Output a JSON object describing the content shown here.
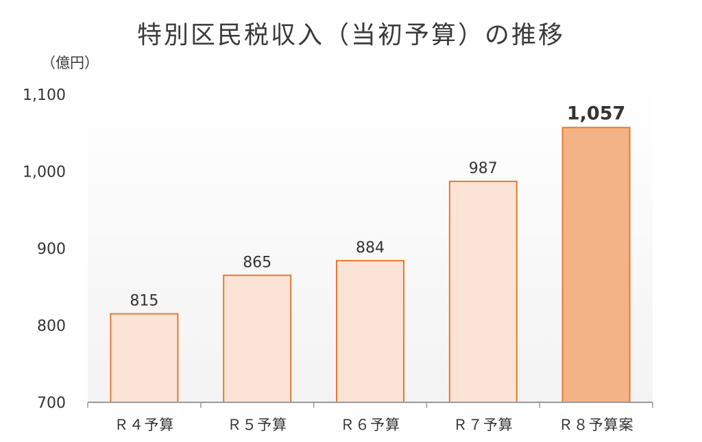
{
  "chart_data": {
    "type": "bar",
    "title": "特別区民税収入（当初予算）の推移",
    "unit_label": "（億円）",
    "categories": [
      "Ｒ４予算",
      "Ｒ５予算",
      "Ｒ６予算",
      "Ｒ７予算",
      "Ｒ８予算案"
    ],
    "values": [
      815,
      865,
      884,
      987,
      1057
    ],
    "value_labels": [
      "815",
      "865",
      "884",
      "987",
      "1,057"
    ],
    "highlight_index": 4,
    "ylim": [
      700,
      1100
    ],
    "yticks": [
      700,
      800,
      900,
      1000,
      1100
    ],
    "ytick_labels": [
      "700",
      "800",
      "900",
      "1,000",
      "1,100"
    ],
    "grid": false,
    "colors": {
      "bar_fill": "#fbe3d6",
      "bar_border": "#e8782d",
      "highlight_fill": "#f4b287",
      "background_top": "#ffffff",
      "background_bottom": "#f3f3f3",
      "axis": "#999999"
    }
  }
}
